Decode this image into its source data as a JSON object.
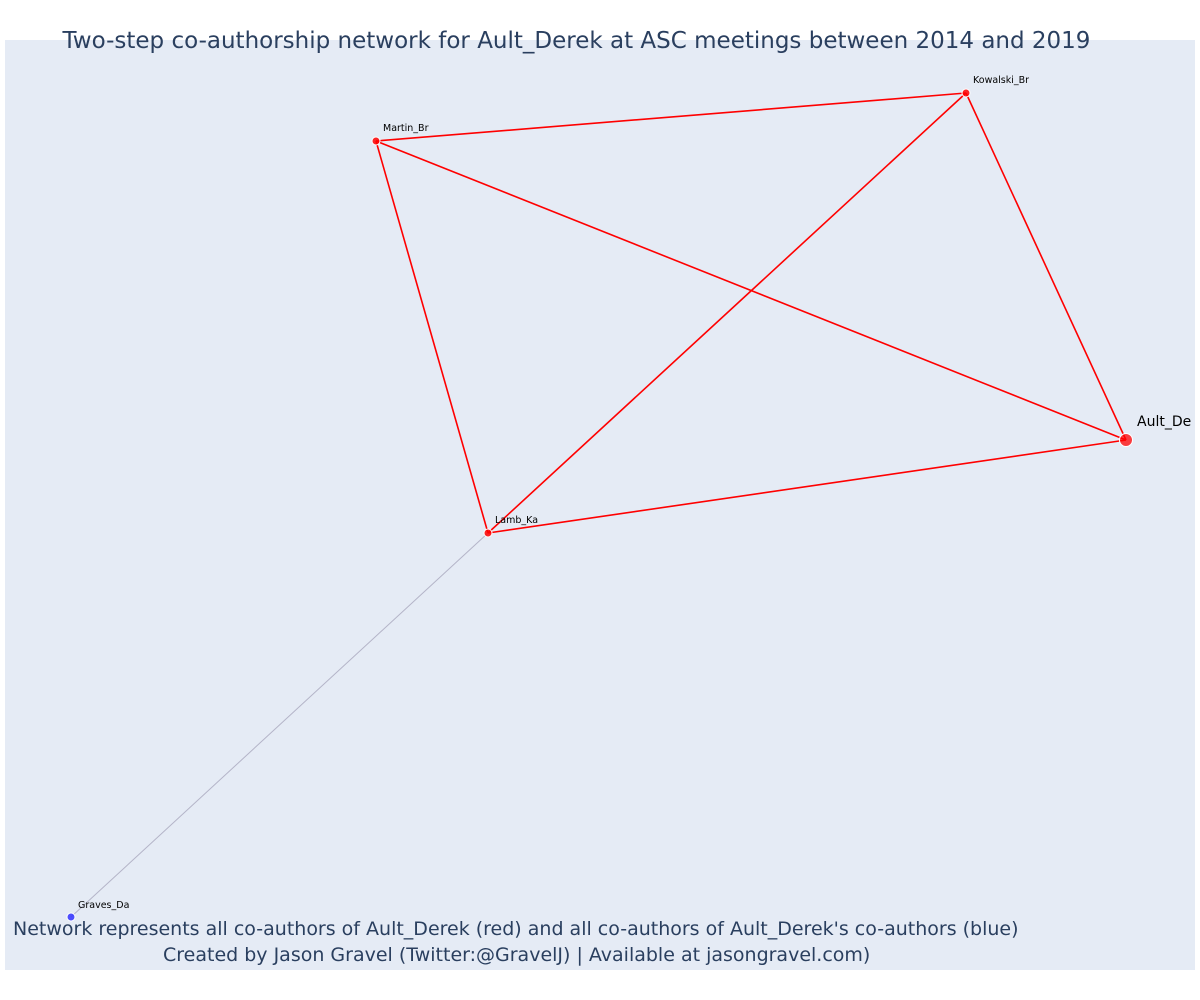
{
  "title": "Two-step co-authorship network for Ault_Derek at ASC meetings between 2014 and 2019",
  "footnote": {
    "line1": "Network represents all co-authors of Ault_Derek (red) and all co-authors of Ault_Derek's co-authors (blue)",
    "line2": "Created by Jason Gravel (Twitter:@GravelJ) | Available at jasongravel.com)"
  },
  "colors": {
    "plot_background": "#e5ebf5",
    "direct_coauthor": "#ff0000",
    "second_step_coauthor": "#3333ff",
    "second_step_edge": "#b4b4c8",
    "text": "#2a3f5f"
  },
  "nodes": [
    {
      "id": "Ault_De",
      "label": "Ault_De",
      "group": "direct",
      "focal": true
    },
    {
      "id": "Kowalski_Br",
      "label": "Kowalski_Br",
      "group": "direct",
      "focal": false
    },
    {
      "id": "Martin_Br",
      "label": "Martin_Br",
      "group": "direct",
      "focal": false
    },
    {
      "id": "Lamb_Ka",
      "label": "Lamb_Ka",
      "group": "direct",
      "focal": false
    },
    {
      "id": "Graves_Da",
      "label": "Graves_Da",
      "group": "second",
      "focal": false
    }
  ],
  "edges": [
    {
      "source": "Martin_Br",
      "target": "Kowalski_Br",
      "group": "direct"
    },
    {
      "source": "Martin_Br",
      "target": "Ault_De",
      "group": "direct"
    },
    {
      "source": "Martin_Br",
      "target": "Lamb_Ka",
      "group": "direct"
    },
    {
      "source": "Kowalski_Br",
      "target": "Ault_De",
      "group": "direct"
    },
    {
      "source": "Kowalski_Br",
      "target": "Lamb_Ka",
      "group": "direct"
    },
    {
      "source": "Lamb_Ka",
      "target": "Ault_De",
      "group": "direct"
    },
    {
      "source": "Lamb_Ka",
      "target": "Graves_Da",
      "group": "second"
    }
  ]
}
